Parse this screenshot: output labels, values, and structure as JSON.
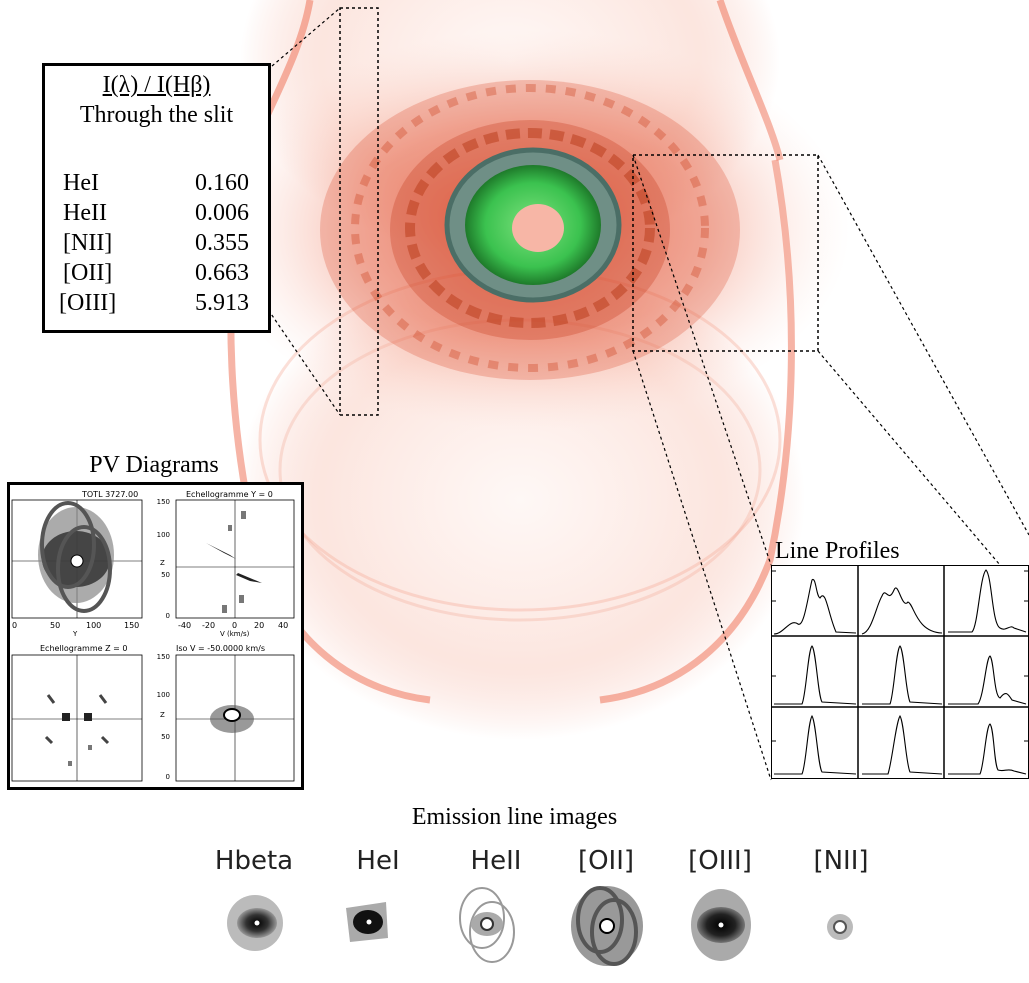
{
  "ratio_box": {
    "title": "I(λ) / I(Hβ)",
    "subtitle": "Through the slit",
    "rows": [
      {
        "name": "HeI",
        "value": "0.160"
      },
      {
        "name": "HeII",
        "value": "0.006"
      },
      {
        "name": "[NII]",
        "value": "0.355"
      },
      {
        "name": "[OII]",
        "value": "0.663"
      },
      {
        "name": "[OIII]",
        "value": "5.913"
      }
    ]
  },
  "pv": {
    "title": "PV Diagrams",
    "panels": [
      {
        "title": "TOTL 3727.00",
        "xlabel": "Y",
        "xticks": [
          "0",
          "50",
          "100",
          "150"
        ]
      },
      {
        "title": "Echellogramme Y = 0",
        "xlabel": "V (km/s)",
        "ylabel": "Z",
        "xticks": [
          "-40",
          "-20",
          "0",
          "20",
          "40"
        ],
        "yticks": [
          "0",
          "50",
          "100",
          "150"
        ]
      },
      {
        "title": "Echellogramme Z = 0"
      },
      {
        "title": "Iso V = -50.0000 km/s",
        "ylabel": "Z",
        "yticks": [
          "0",
          "50",
          "100",
          "150"
        ]
      }
    ]
  },
  "line_profiles": {
    "title": "Line Profiles"
  },
  "emission": {
    "title": "Emission line images",
    "labels": [
      "Hbeta",
      "HeI",
      "HeII",
      "[OII]",
      "[OIII]",
      "[NII]"
    ]
  },
  "colors": {
    "nebula": "#e8492a",
    "core": "#3bc24f",
    "shell": "#6f8f86"
  }
}
